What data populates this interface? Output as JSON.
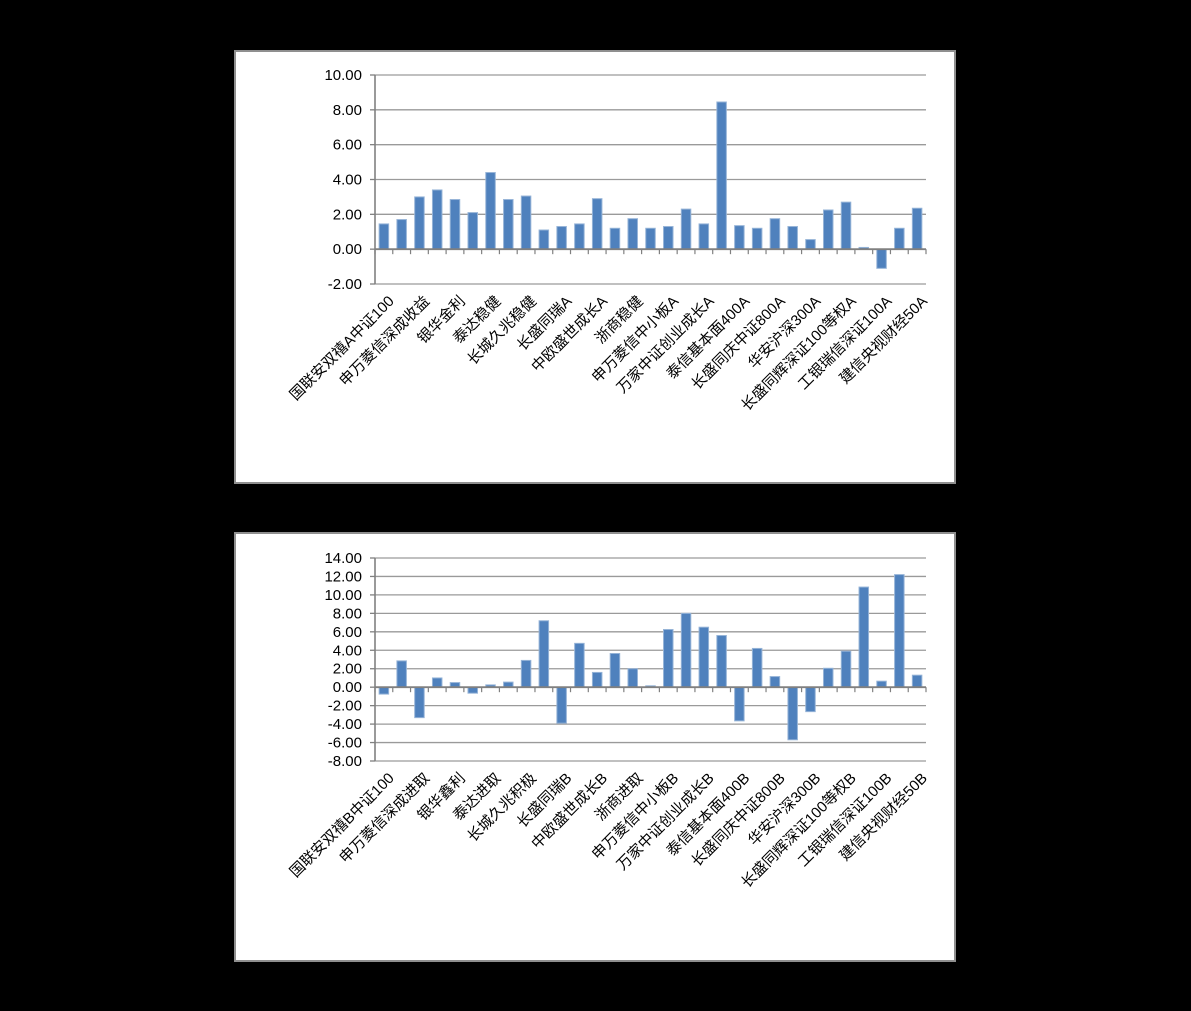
{
  "page": {
    "background_color": "#000000",
    "panel_color": "#ffffff",
    "panel_border_color": "#8f8f8f"
  },
  "chart_data": [
    {
      "type": "bar",
      "title": "",
      "xlabel": "",
      "ylabel": "",
      "legend": "none",
      "grid": "on",
      "bar_color": "#4f81bd",
      "bar_edge_color": "#95b3d7",
      "gridline_color": "#9a9a9a",
      "axis_color": "#808080",
      "text_color": "#000000",
      "ylim": [
        -2,
        10
      ],
      "ytick_step": 2,
      "ytick_labels": [
        "10.00",
        "8.00",
        "6.00",
        "4.00",
        "2.00",
        "0.00",
        "-2.00"
      ],
      "label_every": 2,
      "categories": [
        "国联安双禧A中证100",
        "申万菱信深成收益",
        "银华金利",
        "泰达稳健",
        "长城久兆稳健",
        "长盛同瑞A",
        "中欧盛世成长A",
        "浙商稳健",
        "申万菱信中小板A",
        "万家中证创业成长A",
        "泰信基本面400A",
        "长盛同庆中证800A",
        "华安沪深300A",
        "长盛同辉深证100等权A",
        "工银瑞信深证100A",
        "建信央视财经50A"
      ],
      "values": [
        1.45,
        1.7,
        3.0,
        3.4,
        2.85,
        2.1,
        4.4,
        2.85,
        3.05,
        1.1,
        1.3,
        1.45,
        2.9,
        1.2,
        1.75,
        1.2,
        1.3,
        2.3,
        1.45,
        8.45,
        1.35,
        1.2,
        1.75,
        1.3,
        0.55,
        2.25,
        2.7,
        0.1,
        -1.1,
        1.2,
        2.35
      ]
    },
    {
      "type": "bar",
      "title": "",
      "xlabel": "",
      "ylabel": "",
      "legend": "none",
      "grid": "on",
      "bar_color": "#4f81bd",
      "bar_edge_color": "#95b3d7",
      "gridline_color": "#9a9a9a",
      "axis_color": "#808080",
      "text_color": "#000000",
      "ylim": [
        -8,
        14
      ],
      "ytick_step": 2,
      "ytick_labels": [
        "14.00",
        "12.00",
        "10.00",
        "8.00",
        "6.00",
        "4.00",
        "2.00",
        "0.00",
        "-2.00",
        "-4.00",
        "-6.00",
        "-8.00"
      ],
      "label_every": 2,
      "categories": [
        "国联安双禧B中证100",
        "申万菱信深成进取",
        "银华鑫利",
        "泰达进取",
        "长城久兆积极",
        "长盛同瑞B",
        "中欧盛世成长B",
        "浙商进取",
        "申万菱信中小板B",
        "万家中证创业成长B",
        "泰信基本面400B",
        "长盛同庆中证800B",
        "华安沪深300B",
        "长盛同辉深证100等权B",
        "工银瑞信深证100B",
        "建信央视财经50B"
      ],
      "values": [
        -0.75,
        2.85,
        -3.3,
        1.0,
        0.5,
        -0.65,
        0.25,
        0.55,
        2.9,
        7.2,
        -3.9,
        4.75,
        1.6,
        3.65,
        2.0,
        0.15,
        6.25,
        8.0,
        6.5,
        5.6,
        -3.65,
        4.2,
        1.15,
        -5.7,
        -2.65,
        2.05,
        3.9,
        10.85,
        0.65,
        12.2,
        1.3
      ]
    }
  ]
}
